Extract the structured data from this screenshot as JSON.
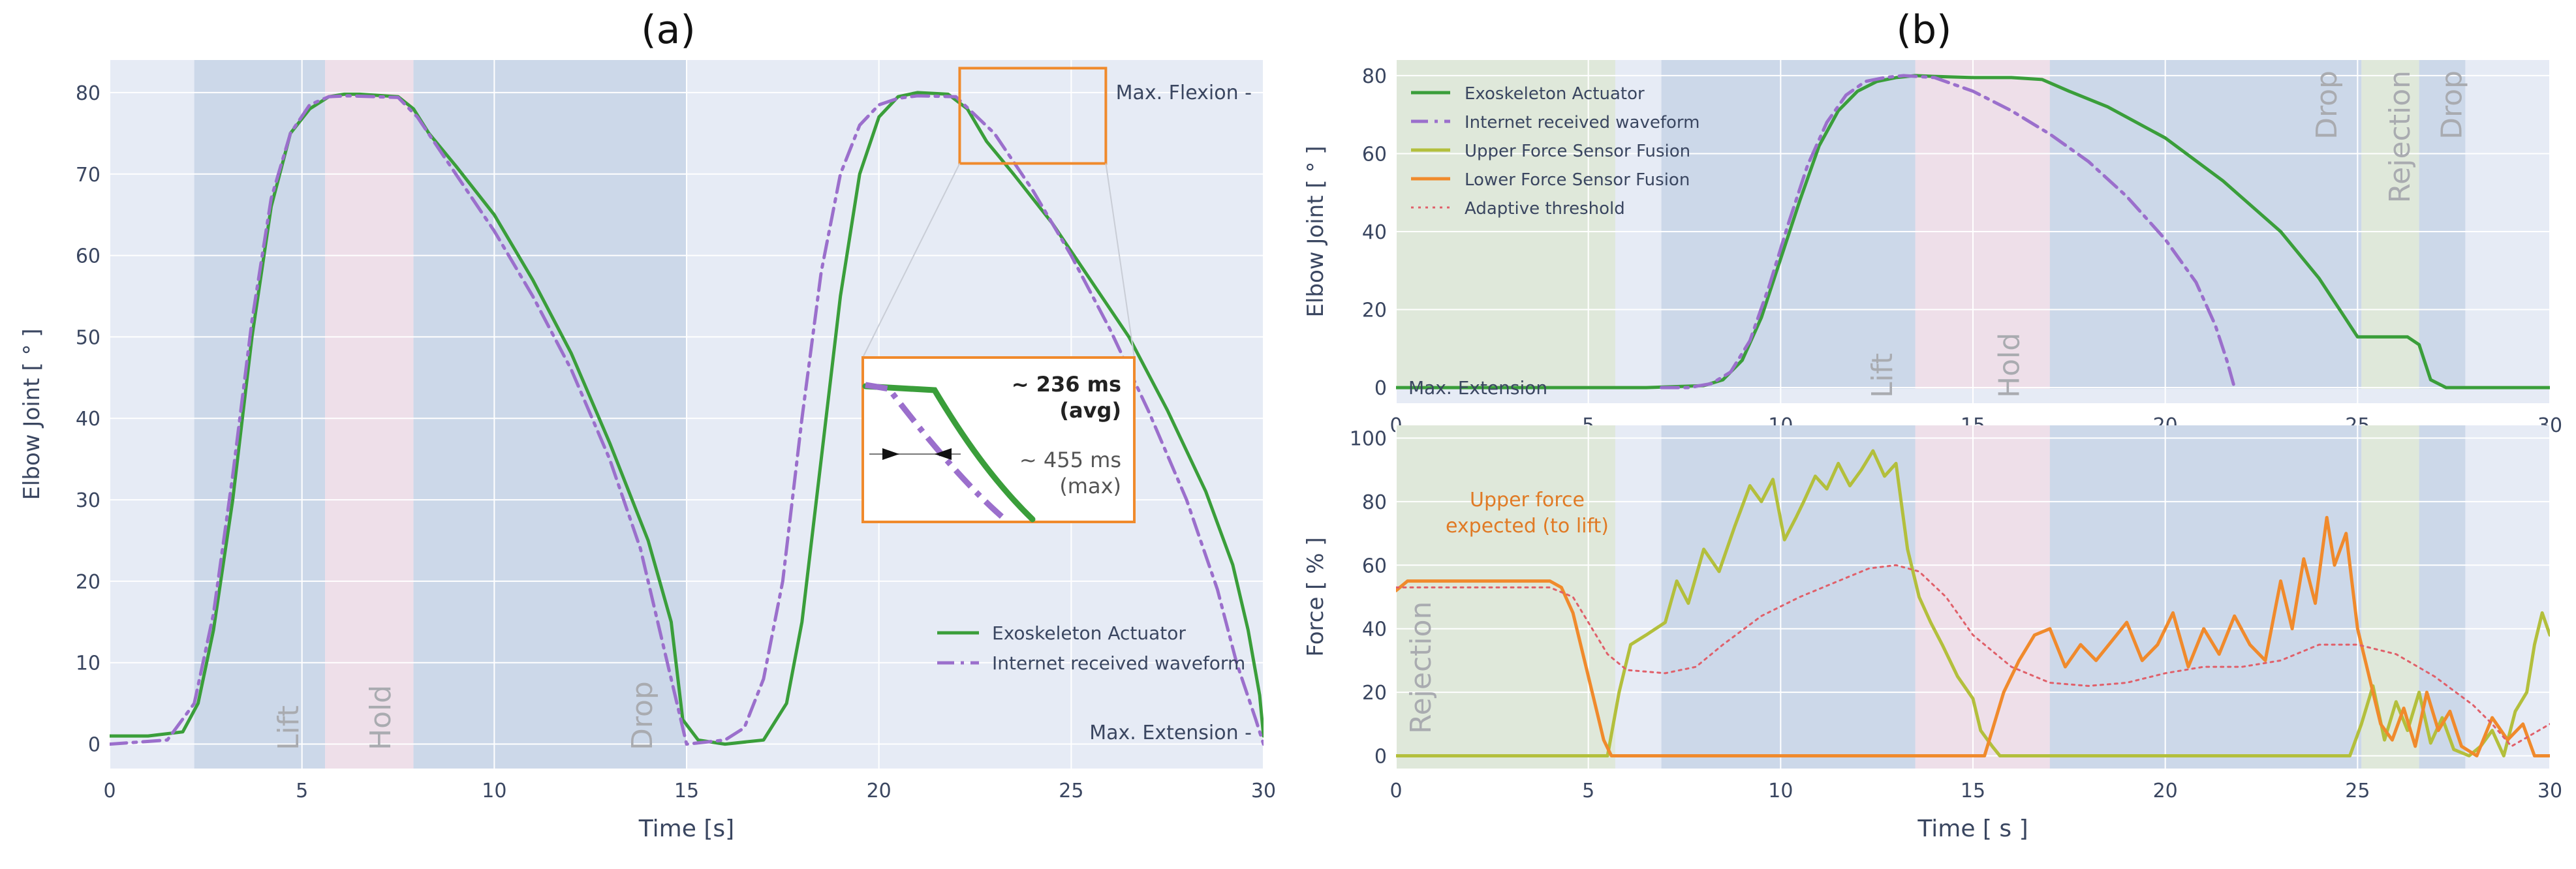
{
  "chart_data": [
    {
      "type": "line",
      "panel_label": "(a)",
      "xlabel": "Time [s]",
      "ylabel": "Elbow Joint [ ° ]",
      "xlim": [
        0,
        30
      ],
      "ylim": [
        -3,
        84
      ],
      "xticks": [
        0,
        5,
        10,
        15,
        20,
        25,
        30
      ],
      "yticks": [
        0,
        10,
        20,
        30,
        40,
        50,
        60,
        70,
        80
      ],
      "phases": [
        {
          "label": "Lift",
          "x0": 2.2,
          "x1": 5.6,
          "color": "#c7d5e6"
        },
        {
          "label": "Hold",
          "x0": 5.6,
          "x1": 7.9,
          "color": "#efdde6"
        },
        {
          "label": "Drop",
          "x0": 7.9,
          "x1": 15.0,
          "color": "#c7d5e6"
        }
      ],
      "annotations": {
        "max_flexion": "Max. Flexion -",
        "max_extension": "Max. Extension -",
        "delay_avg_value": "~ 236 ms",
        "delay_avg_label": "(avg)",
        "delay_max_value": "~ 455 ms",
        "delay_max_label": "(max)"
      },
      "series": [
        {
          "name": "Exoskeleton Actuator",
          "color": "#3a9e3a",
          "dash": "solid",
          "x": [
            0,
            1,
            1.9,
            2.3,
            2.7,
            3.2,
            3.7,
            4.2,
            4.7,
            5.2,
            5.7,
            6.1,
            6.5,
            7.5,
            7.9,
            8.3,
            9,
            10,
            11,
            12,
            13,
            14,
            14.6,
            14.9,
            15.3,
            16,
            17,
            17.6,
            18,
            18.5,
            19,
            19.5,
            20,
            20.5,
            21,
            21.8,
            22.3,
            22.8,
            23.5,
            24.5,
            25.5,
            26.5,
            27.5,
            28.5,
            29.2,
            29.6,
            29.9,
            30
          ],
          "y": [
            1,
            1,
            1.5,
            5,
            14,
            30,
            50,
            66,
            75,
            78,
            79.5,
            79.8,
            79.8,
            79.5,
            78,
            75,
            71,
            65,
            57,
            48,
            37,
            25,
            15,
            3,
            0.5,
            0,
            0.5,
            5,
            15,
            35,
            55,
            70,
            77,
            79.5,
            80,
            79.8,
            78,
            74,
            70,
            64,
            57,
            50,
            41,
            31,
            22,
            14,
            6,
            1
          ]
        },
        {
          "name": "Internet received waveform",
          "color": "#9b6fcc",
          "dash": "dashdot",
          "x": [
            0,
            1.5,
            2.2,
            2.7,
            3.2,
            3.7,
            4.2,
            4.7,
            5.2,
            5.7,
            6.2,
            7.5,
            8,
            9,
            10,
            11,
            12,
            13,
            13.8,
            14.4,
            14.8,
            15,
            16,
            16.5,
            17,
            17.5,
            18,
            18.5,
            19,
            19.5,
            20,
            20.5,
            21,
            22,
            23,
            24,
            25,
            26,
            27,
            28,
            28.8,
            29.3,
            29.8,
            30
          ],
          "y": [
            0,
            0.5,
            5,
            16,
            33,
            52,
            67,
            75,
            78.5,
            79.5,
            79.6,
            79.4,
            77,
            70,
            63,
            55,
            46,
            35,
            24,
            12,
            4,
            0,
            0.5,
            2,
            8,
            20,
            40,
            58,
            70,
            76,
            78.5,
            79.3,
            79.6,
            79.5,
            75,
            68,
            60,
            51,
            41,
            30,
            19,
            10,
            3,
            0
          ]
        }
      ]
    },
    {
      "type": "line",
      "panel_label": "(b)",
      "xlabel": "Time [ s ]",
      "ylabel": "Elbow Joint [ ° ]",
      "xlim": [
        0,
        30
      ],
      "ylim": [
        -4,
        84
      ],
      "xticks": [
        0,
        5,
        10,
        15,
        20,
        25,
        30
      ],
      "yticks": [
        0,
        20,
        40,
        60,
        80
      ],
      "phases": [
        {
          "label": "",
          "x0": 0,
          "x1": 5.7,
          "color": "#dde8d5"
        },
        {
          "label": "Lift",
          "x0": 6.9,
          "x1": 13.5,
          "color": "#c7d5e6"
        },
        {
          "label": "Hold",
          "x0": 13.5,
          "x1": 17.0,
          "color": "#efdde6"
        },
        {
          "label": "Drop",
          "x0": 17.0,
          "x1": 25.1,
          "color": "#c7d5e6"
        },
        {
          "label": "Rejection",
          "x0": 25.1,
          "x1": 26.6,
          "color": "#dde8d5"
        },
        {
          "label": "Drop",
          "x0": 26.6,
          "x1": 27.8,
          "color": "#c7d5e6"
        }
      ],
      "annotations": {
        "max_extension": "Max. Extension"
      },
      "legend_entries": [
        "Exoskeleton Actuator",
        "Internet received waveform",
        "Upper Force Sensor Fusion",
        "Lower Force Sensor Fusion",
        "Adaptive threshold"
      ],
      "series": [
        {
          "name": "Exoskeleton Actuator",
          "color": "#3a9e3a",
          "dash": "solid",
          "x": [
            0,
            6.5,
            8,
            8.5,
            9,
            9.5,
            10,
            10.5,
            11,
            11.5,
            12,
            12.5,
            13,
            13.5,
            14,
            15,
            16,
            16.8,
            17.5,
            18.5,
            20,
            21.5,
            23,
            24,
            24.6,
            25,
            25.3,
            26.3,
            26.6,
            26.9,
            27.3,
            30
          ],
          "y": [
            0,
            0,
            0.5,
            2,
            7,
            18,
            33,
            48,
            62,
            71,
            76,
            78.5,
            79.5,
            80,
            79.8,
            79.5,
            79.5,
            79,
            76,
            72,
            64,
            53,
            40,
            28,
            19,
            13,
            13,
            13,
            11,
            2,
            0,
            0
          ]
        },
        {
          "name": "Internet received waveform",
          "color": "#9b6fcc",
          "dash": "dashdot",
          "x": [
            6.9,
            7.6,
            8.2,
            8.7,
            9.2,
            9.7,
            10.2,
            10.7,
            11.2,
            11.7,
            12.2,
            12.7,
            13.2,
            14,
            15,
            16,
            17,
            18,
            19,
            20,
            20.8,
            21.3,
            21.6,
            21.8
          ],
          "y": [
            0,
            0,
            1,
            4,
            12,
            26,
            42,
            57,
            68,
            75,
            78.5,
            79.5,
            80,
            79.5,
            76,
            71,
            65,
            58,
            49,
            38,
            27,
            16,
            7,
            0
          ]
        }
      ]
    },
    {
      "type": "line",
      "xlabel": "Time [ s ]",
      "ylabel": "Force [ % ]",
      "xlim": [
        0,
        30
      ],
      "ylim": [
        -4,
        104
      ],
      "xticks": [
        0,
        5,
        10,
        15,
        20,
        25,
        30
      ],
      "yticks": [
        0,
        20,
        40,
        60,
        80,
        100
      ],
      "phases": [
        {
          "label": "Rejection",
          "x0": 0,
          "x1": 5.7,
          "color": "#dde8d5"
        },
        {
          "label": "",
          "x0": 6.9,
          "x1": 13.5,
          "color": "#c7d5e6"
        },
        {
          "label": "",
          "x0": 13.5,
          "x1": 17.0,
          "color": "#efdde6"
        },
        {
          "label": "",
          "x0": 17.0,
          "x1": 25.1,
          "color": "#c7d5e6"
        },
        {
          "label": "",
          "x0": 25.1,
          "x1": 26.6,
          "color": "#dde8d5"
        },
        {
          "label": "",
          "x0": 26.6,
          "x1": 27.8,
          "color": "#c7d5e6"
        }
      ],
      "annotations": {
        "upper_force_line1": "Upper force",
        "upper_force_line2": "expected (to lift)"
      },
      "series": [
        {
          "name": "Upper Force Sensor Fusion",
          "color": "#b3bf3c",
          "dash": "solid",
          "x": [
            0,
            5.5,
            5.8,
            6.1,
            6.5,
            7,
            7.3,
            7.6,
            8,
            8.4,
            8.8,
            9.2,
            9.5,
            9.8,
            10.1,
            10.4,
            10.6,
            10.9,
            11.2,
            11.5,
            11.8,
            12.1,
            12.4,
            12.7,
            13,
            13.3,
            13.6,
            13.9,
            14.2,
            14.6,
            15,
            15.2,
            15.5,
            15.7,
            24.8,
            25.1,
            25.4,
            25.7,
            26,
            26.3,
            26.6,
            26.9,
            27.2,
            27.5,
            27.9,
            28.2,
            28.5,
            28.8,
            29.1,
            29.4,
            29.6,
            29.8,
            30
          ],
          "y": [
            0,
            0,
            20,
            35,
            38,
            42,
            55,
            48,
            65,
            58,
            72,
            85,
            80,
            87,
            68,
            75,
            80,
            88,
            84,
            92,
            85,
            90,
            96,
            88,
            92,
            65,
            50,
            42,
            35,
            25,
            18,
            8,
            3,
            0,
            0,
            10,
            22,
            5,
            17,
            8,
            20,
            4,
            12,
            2,
            0,
            3,
            8,
            0,
            14,
            20,
            35,
            45,
            38
          ]
        },
        {
          "name": "Lower Force Sensor Fusion",
          "color": "#f08a2c",
          "dash": "solid",
          "x": [
            0,
            0.3,
            1,
            2,
            3,
            4,
            4.3,
            4.6,
            4.9,
            5.2,
            5.4,
            5.6,
            5.7,
            15.3,
            15.5,
            15.8,
            16.2,
            16.6,
            17,
            17.4,
            17.8,
            18.2,
            18.6,
            19,
            19.4,
            19.8,
            20.2,
            20.6,
            21,
            21.4,
            21.8,
            22.2,
            22.6,
            23,
            23.3,
            23.6,
            23.9,
            24.2,
            24.4,
            24.7,
            25,
            25.3,
            25.6,
            25.9,
            26.2,
            26.5,
            26.8,
            27.1,
            27.4,
            27.7,
            28.1,
            28.5,
            28.9,
            29.3,
            29.6,
            30
          ],
          "y": [
            52,
            55,
            55,
            55,
            55,
            55,
            53,
            45,
            30,
            15,
            5,
            0,
            0,
            0,
            8,
            20,
            30,
            38,
            40,
            28,
            35,
            30,
            36,
            42,
            30,
            35,
            45,
            28,
            40,
            32,
            44,
            35,
            30,
            55,
            40,
            62,
            48,
            75,
            60,
            70,
            40,
            25,
            10,
            5,
            15,
            3,
            20,
            8,
            14,
            3,
            0,
            12,
            5,
            10,
            0,
            0
          ]
        },
        {
          "name": "Adaptive threshold",
          "color": "#e0606a",
          "dash": "dot",
          "x": [
            0,
            2,
            4,
            4.6,
            5,
            5.5,
            6,
            7,
            7.8,
            8.5,
            9.5,
            10.5,
            11.5,
            12.3,
            13,
            13.6,
            14.3,
            15,
            16,
            17,
            18,
            19,
            20,
            21,
            22,
            23,
            24,
            25,
            26,
            27,
            28,
            28.5,
            29,
            30
          ],
          "y": [
            53,
            53,
            53,
            50,
            42,
            32,
            27,
            26,
            28,
            35,
            44,
            50,
            55,
            59,
            60,
            58,
            50,
            38,
            28,
            23,
            22,
            23,
            26,
            28,
            28,
            30,
            35,
            35,
            32,
            25,
            16,
            10,
            3,
            10
          ]
        }
      ]
    }
  ]
}
